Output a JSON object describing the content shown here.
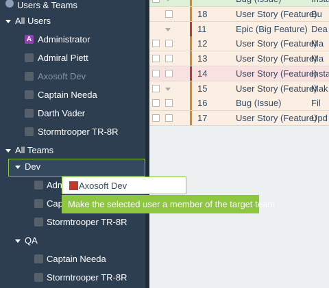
{
  "sidebar": {
    "title": "Users & Teams",
    "all_users": {
      "label": "All Users",
      "users": [
        {
          "name": "Administrator",
          "initial": "A"
        },
        {
          "name": "Admiral Piett"
        },
        {
          "name": "Axosoft Dev"
        },
        {
          "name": "Captain Needa"
        },
        {
          "name": "Darth Vader"
        },
        {
          "name": "Stormtrooper TR-8R"
        }
      ]
    },
    "all_teams": {
      "label": "All Teams",
      "teams": [
        {
          "name": "Dev",
          "members": [
            "Admi",
            "Cap",
            "Stormtrooper TR-8R"
          ]
        },
        {
          "name": "QA",
          "members": [
            "Captain Needa",
            "Stormtrooper TR-8R"
          ]
        }
      ]
    }
  },
  "table": {
    "rows": [
      {
        "type": "Bug (Issue)",
        "title": "Insta"
      },
      {
        "id": 18,
        "type": "User Story (Feature)",
        "title": "Bu"
      },
      {
        "id": 11,
        "type": "Epic (Big Feature)",
        "title": "Dea"
      },
      {
        "id": 12,
        "type": "User Story (Feature)",
        "title": "Ma"
      },
      {
        "id": 13,
        "type": "User Story (Feature)",
        "title": "Ma"
      },
      {
        "id": 14,
        "type": "User Story (Feature)",
        "title": "Insta"
      },
      {
        "id": 15,
        "type": "User Story (Feature)",
        "title": "Mak"
      },
      {
        "id": 16,
        "type": "Bug (Issue)",
        "title": "Fil"
      },
      {
        "id": 17,
        "type": "User Story (Feature)",
        "title": "Upd"
      }
    ]
  },
  "drag": {
    "label": "Axosoft Dev",
    "hint": "Make the selected user a member of the target team"
  }
}
